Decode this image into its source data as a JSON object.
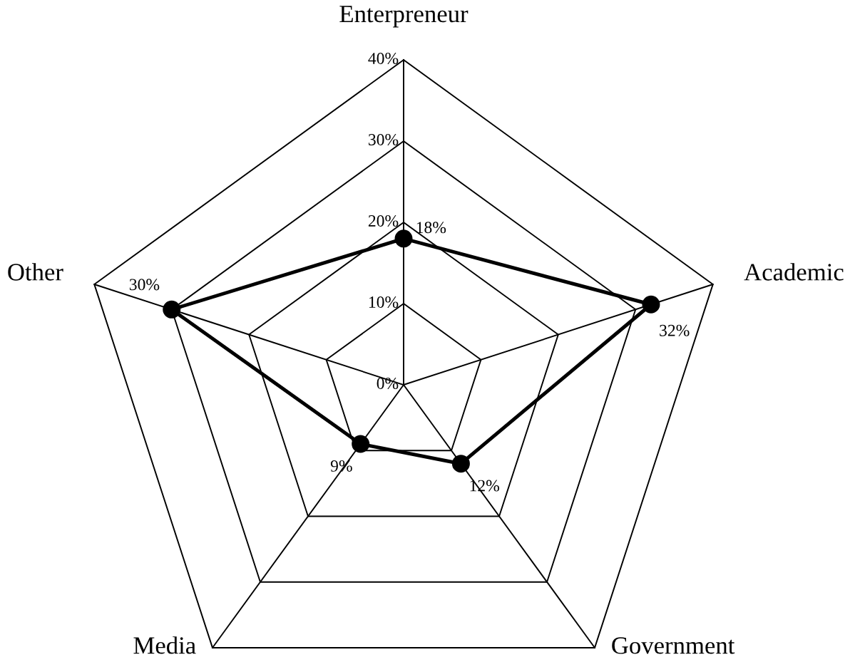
{
  "chart_data": {
    "type": "radar",
    "categories": [
      "Enterpreneur",
      "Academic",
      "Government",
      "Media",
      "Other"
    ],
    "series": [
      {
        "color": "#000000",
        "values": [
          18,
          32,
          12,
          9,
          30
        ],
        "value_labels": [
          "18%",
          "32%",
          "12%",
          "9%",
          "30%"
        ]
      }
    ],
    "ylim": [
      0,
      40
    ],
    "yticks": [
      {
        "value": 0,
        "label": "0%"
      },
      {
        "value": 10,
        "label": "10%"
      },
      {
        "value": 20,
        "label": "20%"
      },
      {
        "value": 30,
        "label": "30%"
      },
      {
        "value": 40,
        "label": "40%"
      }
    ],
    "grid": true,
    "marker": "circle",
    "line_style": "solid"
  }
}
